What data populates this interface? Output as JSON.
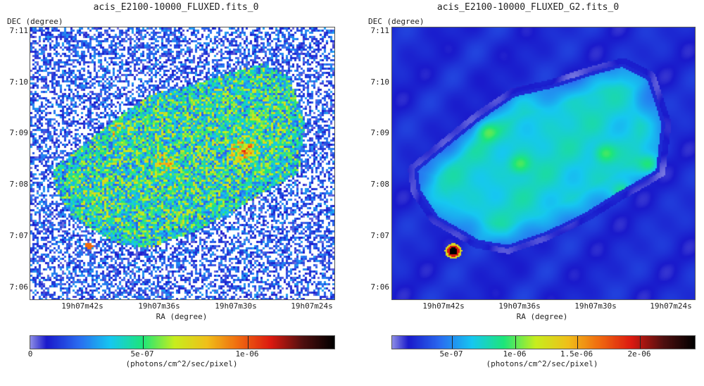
{
  "left": {
    "title": "acis_E2100-10000_FLUXED.fits_0",
    "ylabel": "DEC (degree)",
    "xlabel": "RA (degree)",
    "yticks": [
      "7:11",
      "7:10",
      "7:09",
      "7:08",
      "7:07",
      "7:06"
    ],
    "xticks": [
      "19h07m42s",
      "19h07m36s",
      "19h07m30s",
      "19h07m24s"
    ],
    "colorbar": {
      "ticks": [
        "0",
        "5e-07",
        "1e-06"
      ],
      "unit": "(photons/cm^2/sec/pixel)"
    }
  },
  "right": {
    "title": "acis_E2100-10000_FLUXED_G2.fits_0",
    "ylabel": "DEC (degree)",
    "xlabel": "RA (degree)",
    "yticks": [
      "7:11",
      "7:10",
      "7:09",
      "7:08",
      "7:07",
      "7:06"
    ],
    "xticks": [
      "19h07m42s",
      "19h07m36s",
      "19h07m30s",
      "19h07m24s"
    ],
    "colorbar": {
      "ticks": [
        "5e-07",
        "1e-06",
        "1.5e-06",
        "2e-06"
      ],
      "unit": "(photons/cm^2/sec/pixel)"
    }
  },
  "colors": {
    "colormap": [
      "#ffffff",
      "#1a1acc",
      "#2a6cf0",
      "#16c8f0",
      "#1ee67a",
      "#c8ee1e",
      "#f0c01a",
      "#f06a10",
      "#dc1a10",
      "#501010",
      "#000000"
    ]
  }
}
